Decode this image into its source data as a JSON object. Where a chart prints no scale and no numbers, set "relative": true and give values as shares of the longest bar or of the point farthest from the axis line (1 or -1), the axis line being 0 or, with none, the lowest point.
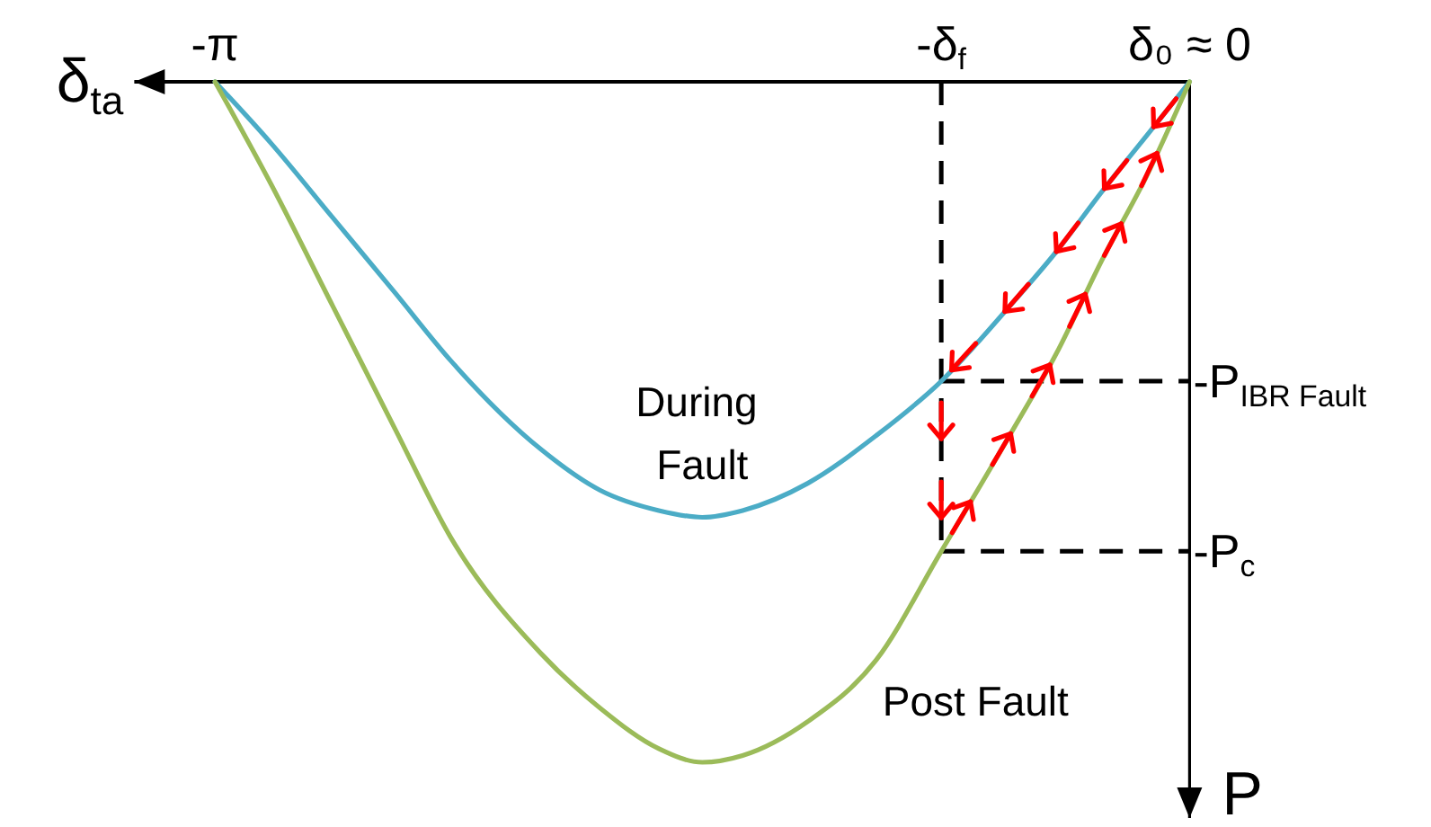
{
  "chart_data": {
    "type": "line",
    "xlabel": "δ$_{ta}$",
    "ylabel": "P",
    "relative": true,
    "x": [
      -3.14,
      -2.96,
      -2.76,
      -2.56,
      -2.38,
      -2.09,
      -1.9,
      -1.71,
      -1.57,
      -1.44,
      -1.23,
      -1.01,
      -0.8,
      -0.58,
      -0.43,
      -0.28,
      -0.14,
      0
    ],
    "xlim": [
      -3.4,
      0
    ],
    "xticks": [
      {
        "value": -3.14,
        "label": "-π"
      },
      {
        "value": 0,
        "label": "δ₀ ≈ 0"
      }
    ],
    "series": [
      {
        "name": "During Fault",
        "color": "#4bacc6",
        "values": [
          0,
          -0.09,
          -0.2,
          -0.31,
          -0.41,
          -0.54,
          -0.6,
          -0.63,
          -0.64,
          -0.63,
          -0.59,
          -0.52,
          -0.44,
          -0.33,
          -0.25,
          -0.16,
          -0.08,
          0
        ]
      },
      {
        "name": "Post Fault",
        "color": "#9bbb59",
        "values": [
          0,
          -0.15,
          -0.33,
          -0.51,
          -0.67,
          -0.84,
          -0.92,
          -0.98,
          -1,
          -0.99,
          -0.94,
          -0.85,
          -0.69,
          -0.52,
          -0.4,
          -0.26,
          -0.14,
          0
        ]
      }
    ],
    "ref_lines": [
      {
        "axis": "x",
        "value": -0.8,
        "label": "-δ$_{f}$",
        "color": "#000000",
        "line_style": "dashed"
      },
      {
        "axis": "y",
        "value": -0.44,
        "label": "-P$_{IBR Fault}$",
        "color": "#000000",
        "line_style": "dashed"
      },
      {
        "axis": "y",
        "value": -0.69,
        "label": "-P$_{c}$",
        "color": "#000000",
        "line_style": "dashed"
      }
    ]
  }
}
